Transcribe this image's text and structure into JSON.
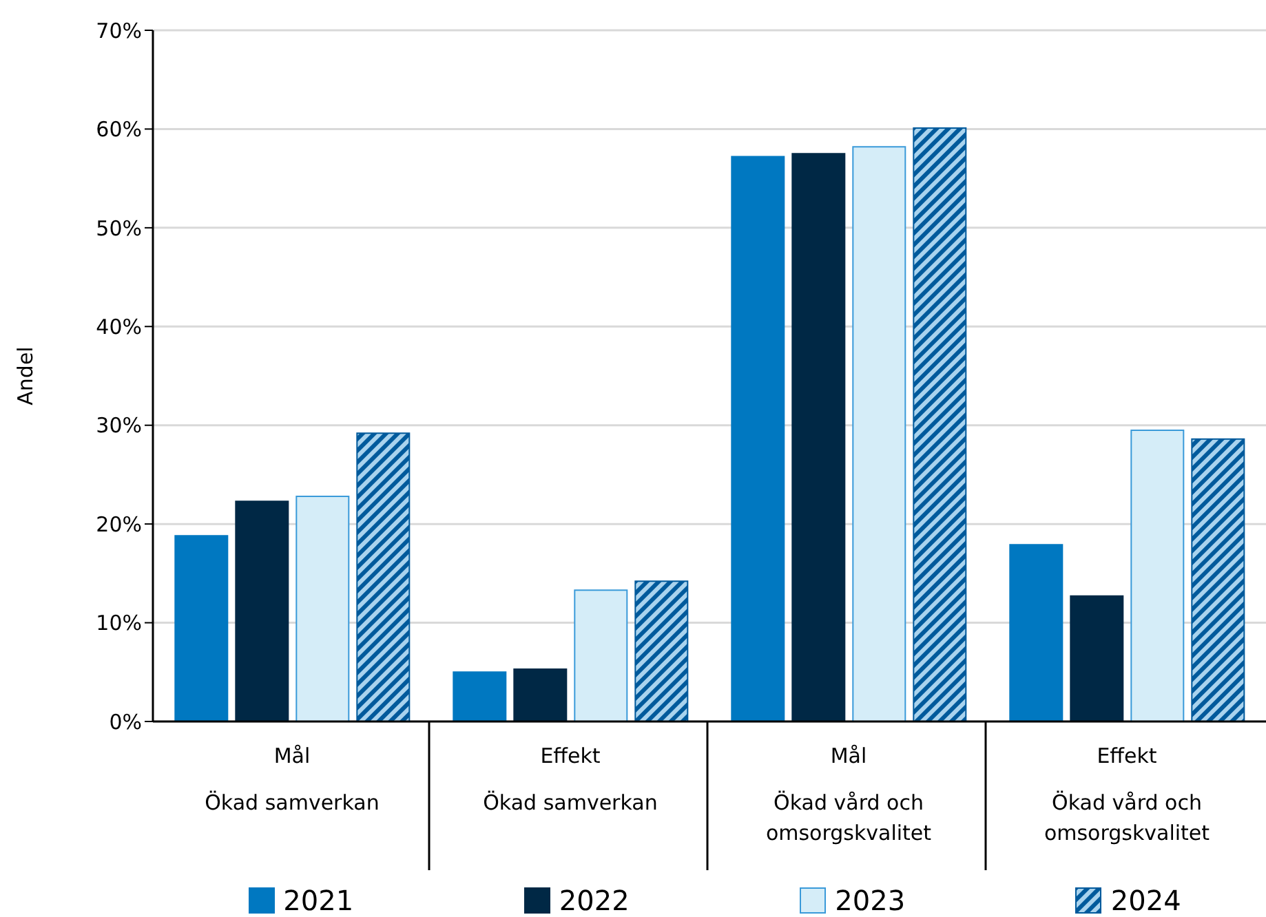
{
  "chart_data": {
    "type": "bar",
    "ylabel": "Andel",
    "categories": [
      "Mål\nÖkad samverkan",
      "Effekt\nÖkad samverkan",
      "Mål\nÖkad vård och\nomsorgskvalitet",
      "Effekt\nÖkad vård och\nomsorgskvalitet"
    ],
    "series": [
      {
        "name": "2021",
        "color": "#0078c1",
        "values": [
          18.8,
          5.0,
          57.2,
          17.9
        ]
      },
      {
        "name": "2022",
        "color": "#002845",
        "values": [
          22.3,
          5.3,
          57.5,
          12.7
        ]
      },
      {
        "name": "2023",
        "color": "#d5edf8",
        "values": [
          22.8,
          13.3,
          58.2,
          29.5
        ]
      },
      {
        "name": "2024",
        "color": "#005a9c",
        "values": [
          29.2,
          14.2,
          60.1,
          28.6
        ]
      }
    ],
    "ylim": [
      0,
      70
    ],
    "yticks": [
      {
        "value": 0,
        "label": "0%"
      },
      {
        "value": 10,
        "label": "10%"
      },
      {
        "value": 20,
        "label": "20%"
      },
      {
        "value": 30,
        "label": "30%"
      },
      {
        "value": 40,
        "label": "40%"
      },
      {
        "value": 50,
        "label": "50%"
      },
      {
        "value": 60,
        "label": "60%"
      },
      {
        "value": 70,
        "label": "70%"
      }
    ],
    "grid": "y",
    "legend": "bottom"
  }
}
